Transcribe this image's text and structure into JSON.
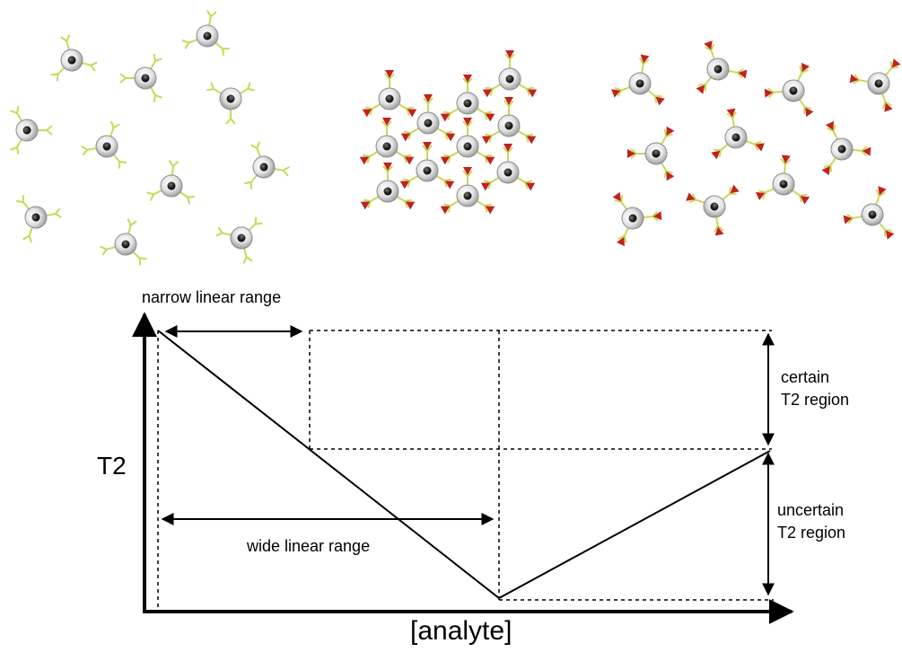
{
  "graph": {
    "y_axis_label": "T2",
    "x_axis_label": "[analyte]",
    "narrow_range_label": "narrow linear range",
    "wide_range_label": "wide linear range",
    "certain_region_label": "certain\nT2 region",
    "uncertain_region_label": "uncertain\nT2 region"
  },
  "panels": [
    {
      "name": "dispersed-nanoparticles",
      "particles": 10,
      "target_bound": false
    },
    {
      "name": "clustered-nanoparticles",
      "particles": 12,
      "target_bound": true
    },
    {
      "name": "saturated-nanoparticles",
      "particles": 12,
      "target_bound": true
    }
  ],
  "colors": {
    "antibody": "#c8d85a",
    "target": "#c0221f",
    "particle_shell": "#d6d6d6",
    "particle_core": "#222222"
  }
}
